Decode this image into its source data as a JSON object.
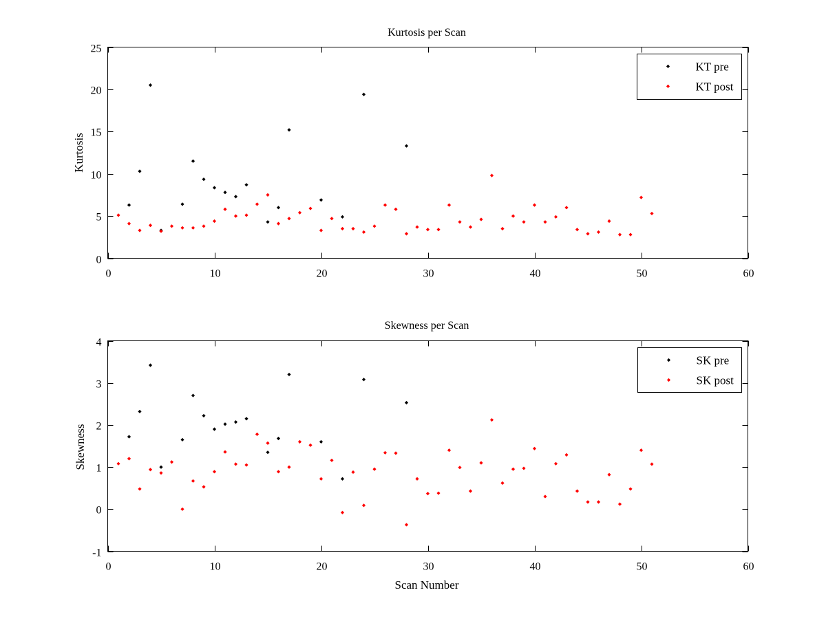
{
  "chart_data": [
    {
      "type": "scatter",
      "title": "Kurtosis per Scan",
      "xlabel": "",
      "ylabel": "Kurtosis",
      "xlim": [
        0,
        60
      ],
      "ylim": [
        0,
        25
      ],
      "xticks": [
        0,
        10,
        20,
        30,
        40,
        50,
        60
      ],
      "yticks": [
        0,
        5,
        10,
        15,
        20,
        25
      ],
      "grid": false,
      "legend_position": "top-right",
      "series": [
        {
          "name": "KT pre",
          "color": "#000000",
          "x": [
            2,
            3,
            4,
            5,
            7,
            8,
            9,
            10,
            11,
            12,
            13,
            15,
            16,
            17,
            20,
            22,
            24,
            28
          ],
          "y": [
            6.3,
            10.3,
            20.5,
            3.3,
            6.4,
            11.5,
            9.35,
            8.35,
            7.8,
            7.3,
            8.7,
            4.3,
            6.0,
            15.2,
            6.9,
            4.9,
            19.4,
            13.3
          ]
        },
        {
          "name": "KT post",
          "color": "#ff0000",
          "x": [
            1,
            2,
            3,
            4,
            5,
            6,
            7,
            8,
            9,
            10,
            11,
            12,
            13,
            14,
            15,
            16,
            17,
            18,
            19,
            20,
            21,
            22,
            23,
            24,
            25,
            26,
            27,
            28,
            29,
            30,
            31,
            32,
            33,
            34,
            35,
            36,
            37,
            38,
            39,
            40,
            41,
            42,
            43,
            44,
            45,
            46,
            47,
            48,
            49,
            50,
            51
          ],
          "y": [
            5.1,
            4.1,
            3.3,
            3.9,
            3.2,
            3.8,
            3.6,
            3.6,
            3.8,
            4.4,
            5.8,
            5.0,
            5.1,
            6.4,
            7.5,
            4.1,
            4.7,
            5.4,
            5.9,
            3.3,
            4.7,
            3.5,
            3.5,
            3.1,
            3.8,
            6.3,
            5.8,
            2.9,
            3.7,
            3.4,
            3.4,
            6.3,
            4.3,
            3.7,
            4.6,
            9.8,
            3.5,
            5.0,
            4.3,
            6.3,
            4.3,
            4.9,
            6.0,
            3.4,
            2.9,
            3.1,
            4.4,
            2.8,
            2.8,
            7.2,
            5.3
          ]
        }
      ]
    },
    {
      "type": "scatter",
      "title": "Skewness per Scan",
      "xlabel": "Scan Number",
      "ylabel": "Skewness",
      "xlim": [
        0,
        60
      ],
      "ylim": [
        -1,
        4
      ],
      "xticks": [
        0,
        10,
        20,
        30,
        40,
        50,
        60
      ],
      "yticks": [
        -1,
        0,
        1,
        2,
        3,
        4
      ],
      "grid": false,
      "legend_position": "top-right",
      "series": [
        {
          "name": "SK pre",
          "color": "#000000",
          "x": [
            2,
            3,
            4,
            5,
            7,
            8,
            9,
            10,
            11,
            12,
            13,
            15,
            16,
            17,
            20,
            22,
            24,
            28
          ],
          "y": [
            1.72,
            2.32,
            3.42,
            1.0,
            1.65,
            2.7,
            2.22,
            1.9,
            2.02,
            2.07,
            2.15,
            1.35,
            1.68,
            3.2,
            1.6,
            0.72,
            3.08,
            2.53
          ]
        },
        {
          "name": "SK post",
          "color": "#ff0000",
          "x": [
            1,
            2,
            3,
            4,
            5,
            6,
            7,
            8,
            9,
            10,
            11,
            12,
            13,
            14,
            15,
            16,
            17,
            18,
            19,
            20,
            21,
            22,
            23,
            24,
            25,
            26,
            27,
            28,
            29,
            30,
            31,
            32,
            33,
            34,
            35,
            36,
            37,
            38,
            39,
            40,
            41,
            42,
            43,
            44,
            45,
            46,
            47,
            48,
            49,
            50,
            51
          ],
          "y": [
            1.08,
            1.2,
            0.48,
            0.94,
            0.86,
            1.12,
            0.0,
            0.67,
            0.53,
            0.89,
            1.36,
            1.07,
            1.05,
            1.78,
            1.57,
            0.89,
            1.0,
            1.6,
            1.52,
            0.72,
            1.16,
            -0.08,
            0.88,
            0.09,
            0.95,
            1.34,
            1.33,
            -0.37,
            0.72,
            0.37,
            0.38,
            1.4,
            0.99,
            0.43,
            1.1,
            2.12,
            0.62,
            0.95,
            0.97,
            1.44,
            0.3,
            1.08,
            1.29,
            0.43,
            0.17,
            0.17,
            0.82,
            0.12,
            0.48,
            1.4,
            1.07
          ]
        }
      ]
    }
  ]
}
